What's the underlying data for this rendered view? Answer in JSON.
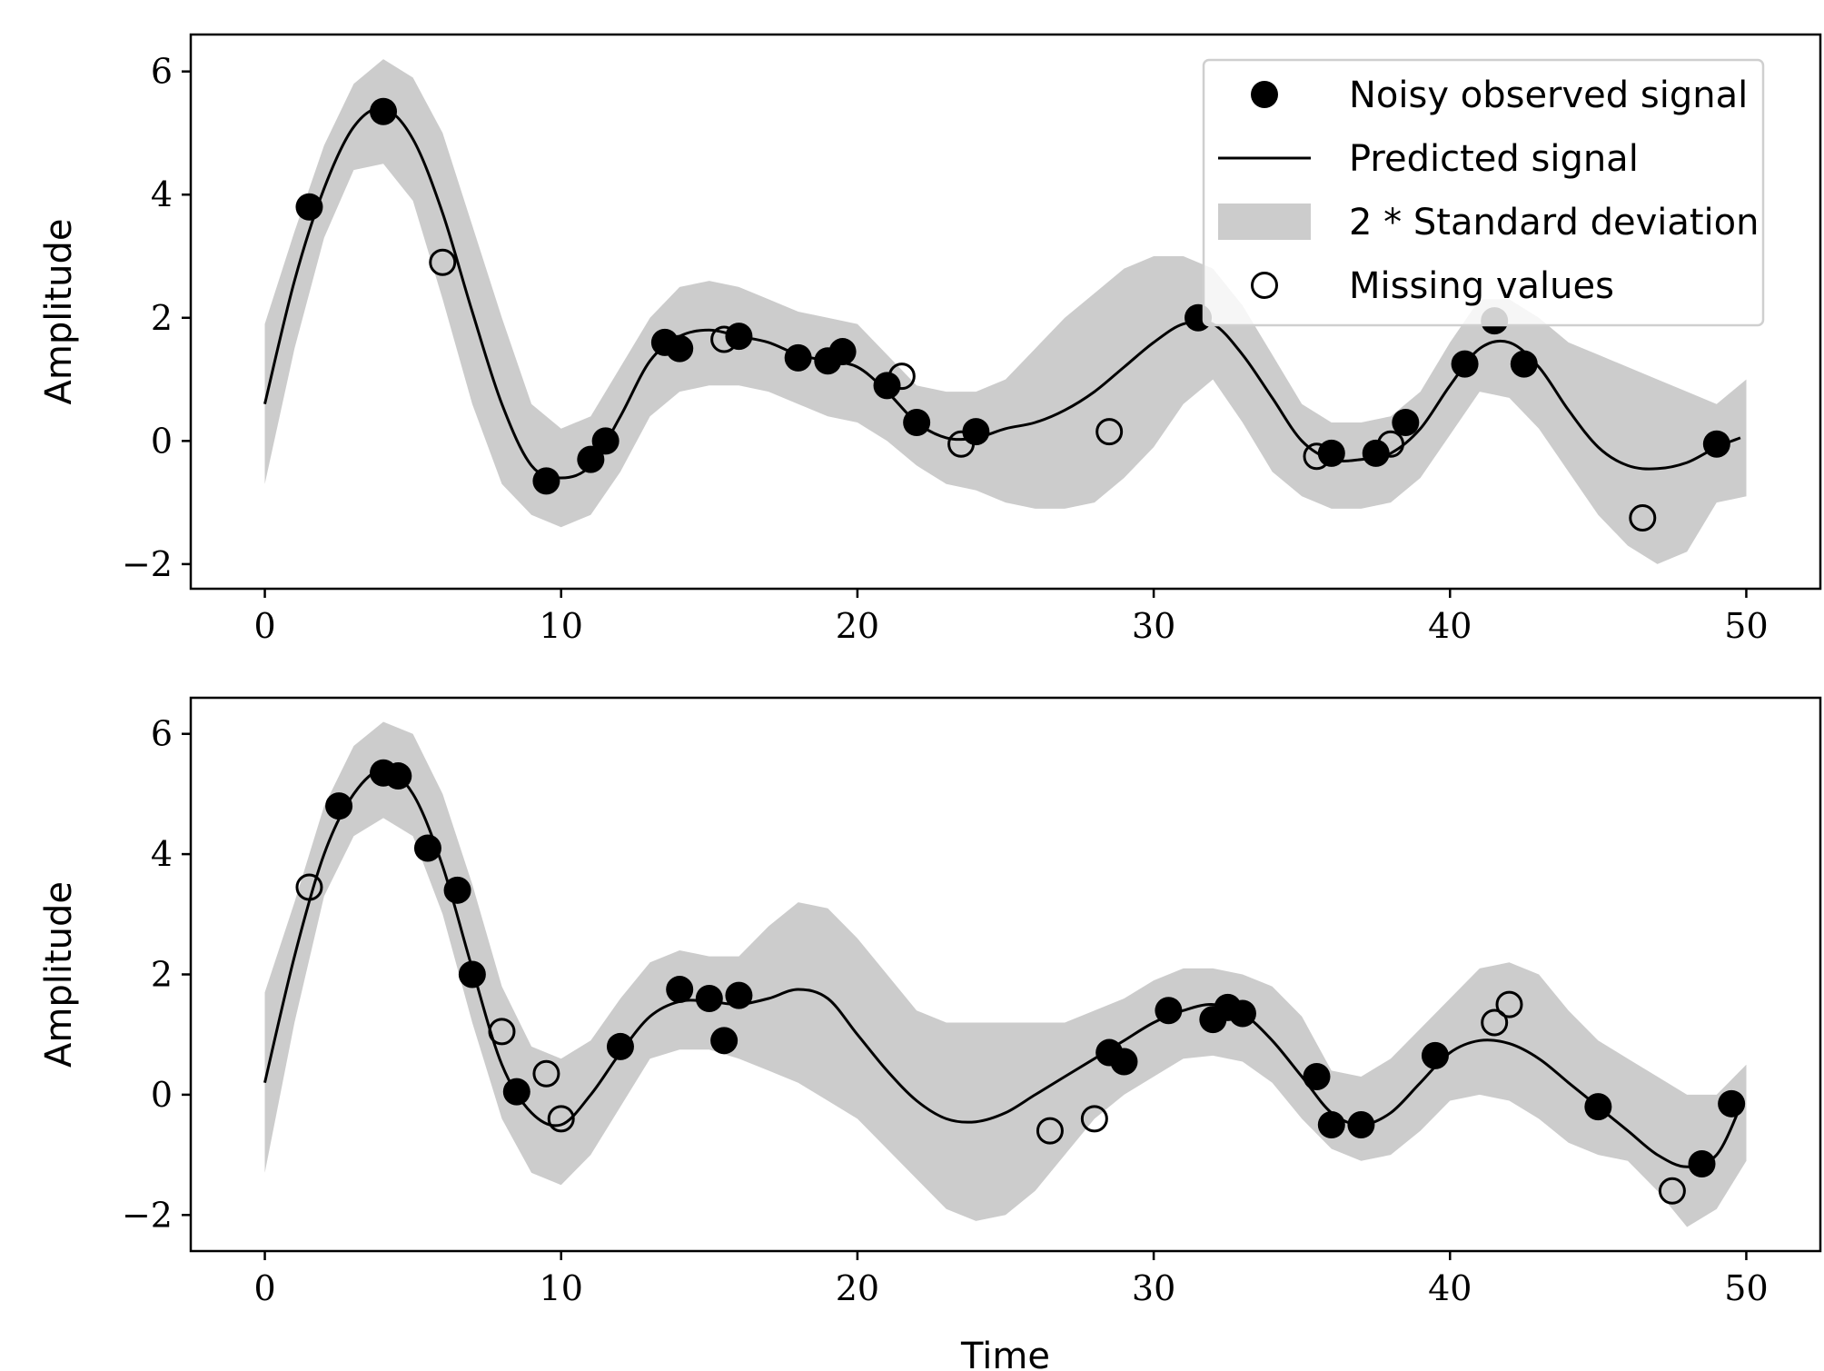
{
  "chart_data": [
    {
      "type": "line",
      "title": "",
      "xlabel": "",
      "ylabel": "Amplitude",
      "xlim": [
        -2.5,
        52.5
      ],
      "ylim": [
        -2.4,
        6.6
      ],
      "xticks": [
        0,
        10,
        20,
        30,
        40,
        50
      ],
      "yticks": [
        -2,
        0,
        2,
        4,
        6
      ],
      "grid": false,
      "legend": {
        "placement": "top-right",
        "entries": [
          {
            "label": "Noisy observed signal",
            "marker": "filled-circle"
          },
          {
            "label": "Predicted signal",
            "marker": "line"
          },
          {
            "label": "2 * Standard deviation",
            "marker": "band"
          },
          {
            "label": "Missing values",
            "marker": "open-circle"
          }
        ]
      },
      "band_color": "#cccccc",
      "series": [
        {
          "name": "Predicted signal",
          "kind": "line",
          "x": [
            0,
            1,
            2,
            3,
            4,
            5,
            6,
            7,
            8,
            9,
            10,
            11,
            12,
            13,
            14,
            15,
            16,
            17,
            18,
            19,
            20,
            21,
            22,
            23,
            24,
            25,
            26,
            27,
            28,
            29,
            30,
            31,
            32,
            33,
            34,
            35,
            36,
            37,
            38,
            39,
            40,
            41,
            42,
            43,
            44,
            45,
            46,
            47,
            48,
            49,
            49.8
          ],
          "y": [
            0.6,
            2.6,
            4.1,
            5.1,
            5.4,
            4.9,
            3.7,
            2.1,
            0.6,
            -0.4,
            -0.6,
            -0.4,
            0.4,
            1.3,
            1.7,
            1.8,
            1.7,
            1.6,
            1.4,
            1.3,
            1.2,
            0.8,
            0.3,
            0.05,
            0.05,
            0.2,
            0.3,
            0.5,
            0.8,
            1.2,
            1.6,
            1.9,
            1.9,
            1.4,
            0.7,
            0.0,
            -0.3,
            -0.3,
            -0.2,
            0.2,
            0.9,
            1.5,
            1.6,
            1.2,
            0.5,
            -0.1,
            -0.4,
            -0.45,
            -0.35,
            -0.1,
            0.05
          ]
        },
        {
          "name": "2 * Standard deviation",
          "kind": "band",
          "x": [
            0,
            1,
            2,
            3,
            4,
            5,
            6,
            7,
            8,
            9,
            10,
            11,
            12,
            13,
            14,
            15,
            16,
            17,
            18,
            19,
            20,
            21,
            22,
            23,
            24,
            25,
            26,
            27,
            28,
            29,
            30,
            31,
            32,
            33,
            34,
            35,
            36,
            37,
            38,
            39,
            40,
            41,
            42,
            43,
            44,
            45,
            46,
            47,
            48,
            49,
            50
          ],
          "lower": [
            -0.7,
            1.5,
            3.3,
            4.4,
            4.5,
            3.9,
            2.3,
            0.6,
            -0.7,
            -1.2,
            -1.4,
            -1.2,
            -0.5,
            0.4,
            0.8,
            0.9,
            0.9,
            0.8,
            0.6,
            0.4,
            0.3,
            0.0,
            -0.4,
            -0.7,
            -0.8,
            -1.0,
            -1.1,
            -1.1,
            -1.0,
            -0.6,
            -0.1,
            0.6,
            1.0,
            0.3,
            -0.5,
            -0.9,
            -1.1,
            -1.1,
            -1.0,
            -0.6,
            0.1,
            0.8,
            0.7,
            0.2,
            -0.5,
            -1.2,
            -1.7,
            -2.0,
            -1.8,
            -1.0,
            -0.9
          ],
          "upper": [
            1.9,
            3.4,
            4.8,
            5.8,
            6.2,
            5.9,
            5.0,
            3.5,
            2.0,
            0.6,
            0.2,
            0.4,
            1.2,
            2.0,
            2.5,
            2.6,
            2.5,
            2.3,
            2.1,
            2.0,
            1.9,
            1.4,
            0.9,
            0.8,
            0.8,
            1.0,
            1.5,
            2.0,
            2.4,
            2.8,
            3.0,
            3.0,
            2.8,
            2.2,
            1.4,
            0.6,
            0.3,
            0.3,
            0.4,
            0.8,
            1.6,
            2.3,
            2.3,
            2.0,
            1.6,
            1.4,
            1.2,
            1.0,
            0.8,
            0.6,
            1.0
          ]
        },
        {
          "name": "Noisy observed signal",
          "kind": "scatter-filled",
          "x": [
            1.5,
            4.0,
            13.5,
            14.0,
            16.0,
            18.0,
            19.0,
            19.5,
            21.0,
            22.0,
            24.0,
            9.5,
            11.0,
            11.5,
            31.5,
            36.0,
            37.5,
            38.5,
            40.5,
            41.5,
            42.5,
            49.0
          ],
          "y": [
            3.8,
            5.35,
            1.6,
            1.5,
            1.7,
            1.35,
            1.3,
            1.45,
            0.9,
            0.3,
            0.15,
            -0.65,
            -0.3,
            0.0,
            2.0,
            -0.2,
            -0.2,
            0.3,
            1.25,
            1.95,
            1.25,
            -0.05
          ]
        },
        {
          "name": "Missing values",
          "kind": "scatter-open",
          "x": [
            6.0,
            15.5,
            21.5,
            23.5,
            28.5,
            35.5,
            38.0,
            46.5
          ],
          "y": [
            2.9,
            1.65,
            1.05,
            -0.05,
            0.15,
            -0.25,
            -0.05,
            -1.25
          ]
        }
      ]
    },
    {
      "type": "line",
      "title": "",
      "xlabel": "Time",
      "ylabel": "Amplitude",
      "xlim": [
        -2.5,
        52.5
      ],
      "ylim": [
        -2.6,
        6.6
      ],
      "xticks": [
        0,
        10,
        20,
        30,
        40,
        50
      ],
      "yticks": [
        -2,
        0,
        2,
        4,
        6
      ],
      "grid": false,
      "band_color": "#cccccc",
      "series": [
        {
          "name": "Predicted signal",
          "kind": "line",
          "x": [
            0,
            1,
            2,
            3,
            4,
            5,
            6,
            7,
            8,
            9,
            10,
            11,
            12,
            13,
            14,
            15,
            16,
            17,
            18,
            19,
            20,
            21,
            22,
            23,
            24,
            25,
            26,
            27,
            28,
            29,
            30,
            31,
            32,
            33,
            34,
            35,
            36,
            37,
            38,
            39,
            40,
            41,
            42,
            43,
            44,
            45,
            46,
            47,
            48,
            49,
            49.8
          ],
          "y": [
            0.2,
            2.3,
            4.0,
            5.0,
            5.4,
            5.0,
            3.8,
            2.1,
            0.5,
            -0.3,
            -0.5,
            0.0,
            0.7,
            1.3,
            1.55,
            1.55,
            1.5,
            1.6,
            1.75,
            1.6,
            1.0,
            0.4,
            -0.1,
            -0.4,
            -0.45,
            -0.3,
            0.0,
            0.3,
            0.6,
            0.9,
            1.2,
            1.4,
            1.5,
            1.35,
            0.9,
            0.3,
            -0.3,
            -0.5,
            -0.3,
            0.2,
            0.7,
            0.9,
            0.85,
            0.6,
            0.2,
            -0.2,
            -0.6,
            -1.0,
            -1.2,
            -1.0,
            -0.2
          ]
        },
        {
          "name": "2 * Standard deviation",
          "kind": "band",
          "x": [
            0,
            1,
            2,
            3,
            4,
            5,
            6,
            7,
            8,
            9,
            10,
            11,
            12,
            13,
            14,
            15,
            16,
            17,
            18,
            19,
            20,
            21,
            22,
            23,
            24,
            25,
            26,
            27,
            28,
            29,
            30,
            31,
            32,
            33,
            34,
            35,
            36,
            37,
            38,
            39,
            40,
            41,
            42,
            43,
            44,
            45,
            46,
            47,
            48,
            49,
            50
          ],
          "lower": [
            -1.3,
            1.2,
            3.3,
            4.3,
            4.6,
            4.3,
            3.0,
            1.2,
            -0.4,
            -1.3,
            -1.5,
            -1.0,
            -0.2,
            0.6,
            0.75,
            0.75,
            0.6,
            0.4,
            0.2,
            -0.1,
            -0.4,
            -0.9,
            -1.4,
            -1.9,
            -2.1,
            -2.0,
            -1.6,
            -1.0,
            -0.4,
            0.0,
            0.3,
            0.6,
            0.65,
            0.55,
            0.2,
            -0.4,
            -0.9,
            -1.1,
            -1.0,
            -0.6,
            -0.1,
            0.0,
            -0.1,
            -0.4,
            -0.8,
            -1.0,
            -1.1,
            -1.6,
            -2.2,
            -1.9,
            -1.1
          ],
          "upper": [
            1.7,
            3.2,
            4.8,
            5.8,
            6.2,
            6.0,
            5.0,
            3.5,
            1.8,
            0.8,
            0.6,
            0.9,
            1.6,
            2.2,
            2.4,
            2.3,
            2.3,
            2.8,
            3.2,
            3.1,
            2.6,
            2.0,
            1.4,
            1.2,
            1.2,
            1.2,
            1.2,
            1.2,
            1.4,
            1.6,
            1.9,
            2.1,
            2.1,
            2.0,
            1.8,
            1.3,
            0.4,
            0.3,
            0.6,
            1.1,
            1.6,
            2.1,
            2.2,
            2.0,
            1.4,
            0.9,
            0.6,
            0.3,
            0.0,
            0.0,
            0.5
          ]
        },
        {
          "name": "Noisy observed signal",
          "kind": "scatter-filled",
          "x": [
            2.5,
            4.0,
            4.5,
            5.5,
            6.5,
            7.0,
            8.5,
            12.0,
            14.0,
            15.0,
            15.5,
            16.0,
            28.5,
            29.0,
            30.5,
            32.0,
            32.5,
            33.0,
            35.5,
            36.0,
            37.0,
            39.5,
            45.0,
            48.5,
            49.5
          ],
          "y": [
            4.8,
            5.35,
            5.3,
            4.1,
            3.4,
            2.0,
            0.05,
            0.8,
            1.75,
            1.6,
            0.9,
            1.65,
            0.7,
            0.55,
            1.4,
            1.25,
            1.45,
            1.35,
            0.3,
            -0.5,
            -0.5,
            0.65,
            -0.2,
            -1.15,
            -0.15
          ]
        },
        {
          "name": "Missing values",
          "kind": "scatter-open",
          "x": [
            1.5,
            8.0,
            9.5,
            10.0,
            26.5,
            28.0,
            41.5,
            42.0,
            47.5
          ],
          "y": [
            3.45,
            1.05,
            0.35,
            -0.4,
            -0.6,
            -0.4,
            1.2,
            1.5,
            -1.6
          ]
        }
      ]
    }
  ]
}
